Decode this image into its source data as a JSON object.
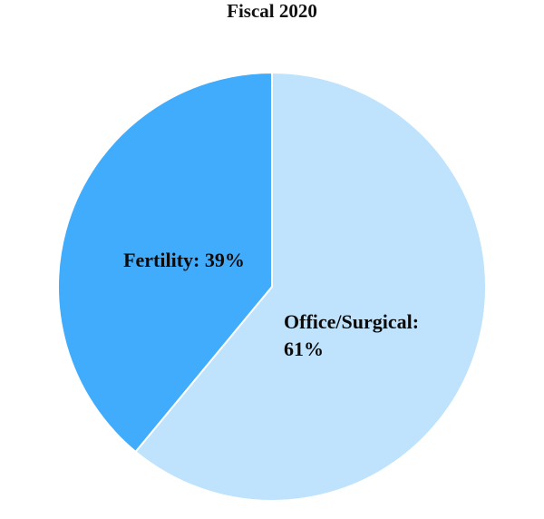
{
  "chart_data": {
    "type": "pie",
    "title": "Fiscal 2020",
    "start_angle": "12 o'clock",
    "direction": "clockwise",
    "slices": [
      {
        "label": "Office/Surgical",
        "value": 61,
        "display": [
          "Office/Surgical:",
          "61%"
        ],
        "color": "#bfe3fd"
      },
      {
        "label": "Fertility",
        "value": 39,
        "display": [
          "Fertility: 39%"
        ],
        "color": "#42acfc"
      }
    ]
  }
}
